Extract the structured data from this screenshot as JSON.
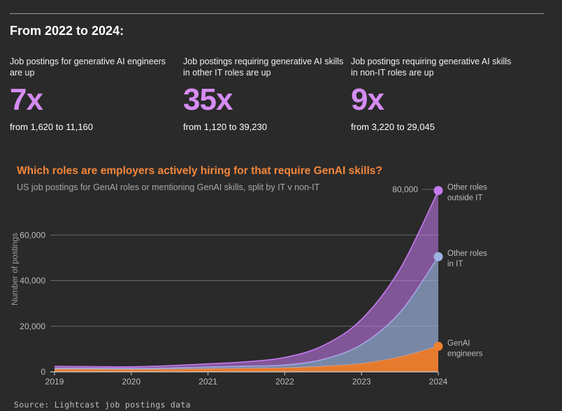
{
  "header": {
    "title": "From 2022 to 2024:"
  },
  "stats": [
    {
      "description": "Job postings for generative AI engineers are up",
      "multiplier": "7x",
      "range": "from 1,620 to 11,160"
    },
    {
      "description": "Job postings requiring generative AI skills in other IT roles are up",
      "multiplier": "35x",
      "range": "from 1,120 to 39,230"
    },
    {
      "description": "Job postings requiring generative AI skills in non-IT roles are up",
      "multiplier": "9x",
      "range": "from 3,220 to 29,045"
    }
  ],
  "chart_data": {
    "type": "area",
    "title": "Which roles are employers actively hiring for that require GenAI skills?",
    "subtitle": "US job postings for GenAI roles or mentioning GenAI skills, split by IT v non-IT",
    "xlabel": "",
    "ylabel": "Number of postings",
    "x": [
      2019,
      2019.5,
      2020,
      2020.5,
      2021,
      2021.5,
      2022,
      2022.5,
      2023,
      2023.5,
      2024
    ],
    "categories": [
      "2019",
      "2020",
      "2021",
      "2022",
      "2023",
      "2024"
    ],
    "ylim": [
      0,
      80000
    ],
    "yticks": [
      0,
      20000,
      40000,
      60000
    ],
    "ytick_labels": [
      "0",
      "20,000",
      "40,000",
      "60,000"
    ],
    "top_label": "80,000",
    "stacked": true,
    "series": [
      {
        "name": "GenAI engineers",
        "label_lines": [
          "GenAI",
          "engineers"
        ],
        "color": "#f07f2e",
        "cumulative": [
          1100,
          1100,
          1000,
          1100,
          1300,
          1500,
          1700,
          2400,
          3600,
          6500,
          11200
        ]
      },
      {
        "name": "Other roles in IT",
        "label_lines": [
          "Other roles",
          "in IT"
        ],
        "color": "#9eb4e2",
        "cumulative": [
          1600,
          1600,
          1500,
          1700,
          2100,
          2500,
          3000,
          5500,
          12000,
          26000,
          50500
        ]
      },
      {
        "name": "Other roles outside IT",
        "label_lines": [
          "Other roles",
          "outside IT"
        ],
        "color": "#c77af0",
        "cumulative": [
          2400,
          2300,
          2200,
          2700,
          3500,
          4400,
          6300,
          11500,
          23000,
          45000,
          79500
        ]
      }
    ]
  },
  "footer": {
    "source": "Source: Lightcast job postings data"
  }
}
